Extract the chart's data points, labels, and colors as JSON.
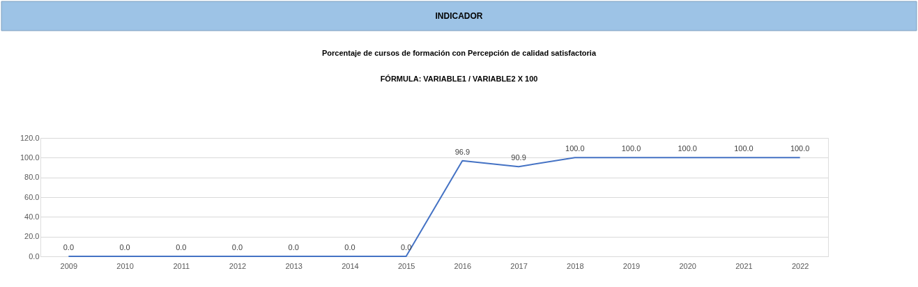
{
  "chart_data": {
    "type": "line",
    "title": "INDICADOR",
    "subtitle": "Porcentaje de cursos de formación con Percepción de calidad satisfactoria",
    "annotations": [
      "FÓRMULA: VARIABLE1 / VARIABLE2 X 100"
    ],
    "categories": [
      "2009",
      "2010",
      "2011",
      "2012",
      "2013",
      "2014",
      "2015",
      "2016",
      "2017",
      "2018",
      "2019",
      "2020",
      "2021",
      "2022"
    ],
    "series": [
      {
        "color": "#4472c4",
        "values": [
          0,
          0,
          0,
          0,
          0,
          0,
          0,
          96.9,
          90.9,
          100,
          100,
          100,
          100,
          100
        ],
        "value_labels": [
          "0.0",
          "0.0",
          "0.0",
          "0.0",
          "0.0",
          "0.0",
          "0.0",
          "96.9",
          "90.9",
          "100.0",
          "100.0",
          "100.0",
          "100.0",
          "100.0"
        ]
      }
    ],
    "ylim": [
      0,
      120
    ],
    "yticks": [
      {
        "value": 0,
        "label": "0.0"
      },
      {
        "value": 20,
        "label": "20.0"
      },
      {
        "value": 40,
        "label": "40.0"
      },
      {
        "value": 60,
        "label": "60.0"
      },
      {
        "value": 80,
        "label": "80.0"
      },
      {
        "value": 100,
        "label": "100.0"
      },
      {
        "value": 120,
        "label": "120.0"
      }
    ],
    "grid": "y",
    "legend": false,
    "marker": "none",
    "line_style": "solid"
  }
}
